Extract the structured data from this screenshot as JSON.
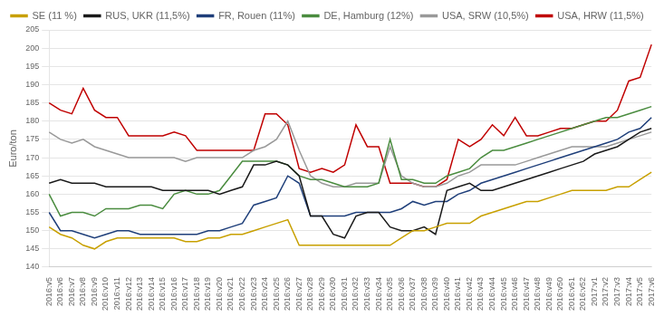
{
  "chart_data": {
    "type": "line",
    "ylabel": "Euro/ton",
    "categories": [
      "2016:v5",
      "2016:v6",
      "2016:v7",
      "2016:v8",
      "2016:v9",
      "2016:v10",
      "2016:v11",
      "2016:v12",
      "2016:v13",
      "2016:v14",
      "2016:v15",
      "2016:v16",
      "2016:v17",
      "2016:v18",
      "2016:v19",
      "2016:v20",
      "2016:v21",
      "2016:v22",
      "2016:v23",
      "2016:v24",
      "2016:v25",
      "2016:v26",
      "2016:v27",
      "2016:v28",
      "2016:v29",
      "2016:v30",
      "2016:v31",
      "2016:v32",
      "2016:v33",
      "2016:v34",
      "2016:v35",
      "2016:v36",
      "2016:v37",
      "2016:v38",
      "2016:v39",
      "2016:v40",
      "2016:v41",
      "2016:v42",
      "2016:v43",
      "2016:v44",
      "2016:v45",
      "2016:v46",
      "2016:v47",
      "2016:v48",
      "2016:v49",
      "2016:v50",
      "2016:v51",
      "2016:v52",
      "2017:v1",
      "2017:v2",
      "2017:v3",
      "2017:v4",
      "2017:v5",
      "2017:v6"
    ],
    "series": [
      {
        "name": "SE (11 %)",
        "color": "#c8a000",
        "values": [
          151,
          149,
          148,
          146,
          145,
          147,
          148,
          148,
          148,
          148,
          148,
          148,
          147,
          147,
          148,
          148,
          149,
          149,
          150,
          151,
          152,
          153,
          146,
          146,
          146,
          146,
          146,
          146,
          146,
          146,
          146,
          148,
          150,
          150,
          151,
          152,
          152,
          152,
          154,
          155,
          156,
          157,
          158,
          158,
          159,
          160,
          161,
          161,
          161,
          161,
          162,
          162,
          164,
          166
        ]
      },
      {
        "name": "RUS, UKR (11,5%)",
        "color": "#1a1a1a",
        "values": [
          163,
          164,
          163,
          163,
          163,
          162,
          162,
          162,
          162,
          162,
          161,
          161,
          161,
          161,
          161,
          160,
          161,
          162,
          168,
          168,
          169,
          168,
          165,
          154,
          154,
          149,
          148,
          154,
          155,
          155,
          151,
          150,
          150,
          151,
          149,
          161,
          162,
          163,
          161,
          161,
          162,
          163,
          164,
          165,
          166,
          167,
          168,
          169,
          171,
          172,
          173,
          175,
          177,
          178
        ]
      },
      {
        "name": "FR, Rouen (11%)",
        "color": "#1f3f7a",
        "values": [
          155,
          150,
          150,
          149,
          148,
          149,
          150,
          150,
          149,
          149,
          149,
          149,
          149,
          149,
          150,
          150,
          151,
          152,
          157,
          158,
          159,
          165,
          163,
          154,
          154,
          154,
          154,
          155,
          155,
          155,
          155,
          156,
          158,
          157,
          158,
          158,
          160,
          161,
          163,
          164,
          165,
          166,
          167,
          168,
          169,
          170,
          171,
          172,
          173,
          174,
          175,
          177,
          178,
          181
        ]
      },
      {
        "name": "DE, Hamburg (12%)",
        "color": "#4a8c3f",
        "values": [
          160,
          154,
          155,
          155,
          154,
          156,
          156,
          156,
          157,
          157,
          156,
          160,
          161,
          160,
          160,
          161,
          165,
          169,
          169,
          169,
          169,
          168,
          165,
          164,
          164,
          163,
          162,
          162,
          162,
          163,
          175,
          164,
          164,
          163,
          163,
          165,
          166,
          167,
          170,
          172,
          172,
          173,
          174,
          175,
          176,
          177,
          178,
          179,
          180,
          181,
          181,
          182,
          183,
          184
        ]
      },
      {
        "name": "USA, SRW (10,5%)",
        "color": "#999999",
        "values": [
          177,
          175,
          174,
          175,
          173,
          172,
          171,
          170,
          170,
          170,
          170,
          170,
          169,
          170,
          170,
          170,
          170,
          170,
          172,
          173,
          175,
          180,
          172,
          165,
          163,
          162,
          162,
          163,
          163,
          163,
          173,
          165,
          163,
          162,
          162,
          163,
          165,
          166,
          168,
          168,
          168,
          168,
          169,
          170,
          171,
          172,
          173,
          173,
          173,
          173,
          174,
          175,
          176,
          177
        ]
      },
      {
        "name": "USA, HRW (11,5%)",
        "color": "#c00000",
        "values": [
          185,
          183,
          182,
          189,
          183,
          181,
          181,
          176,
          176,
          176,
          176,
          177,
          176,
          172,
          172,
          172,
          172,
          172,
          172,
          182,
          182,
          179,
          167,
          166,
          167,
          166,
          168,
          179,
          173,
          173,
          163,
          163,
          163,
          162,
          162,
          164,
          175,
          173,
          175,
          179,
          176,
          181,
          176,
          176,
          177,
          178,
          178,
          179,
          180,
          180,
          183,
          191,
          192,
          201
        ]
      }
    ],
    "ylim": [
      140,
      205
    ],
    "yticks": [
      140,
      145,
      150,
      155,
      160,
      165,
      170,
      175,
      180,
      185,
      190,
      195,
      200,
      205
    ],
    "grid": "y",
    "legend": "upper left"
  }
}
